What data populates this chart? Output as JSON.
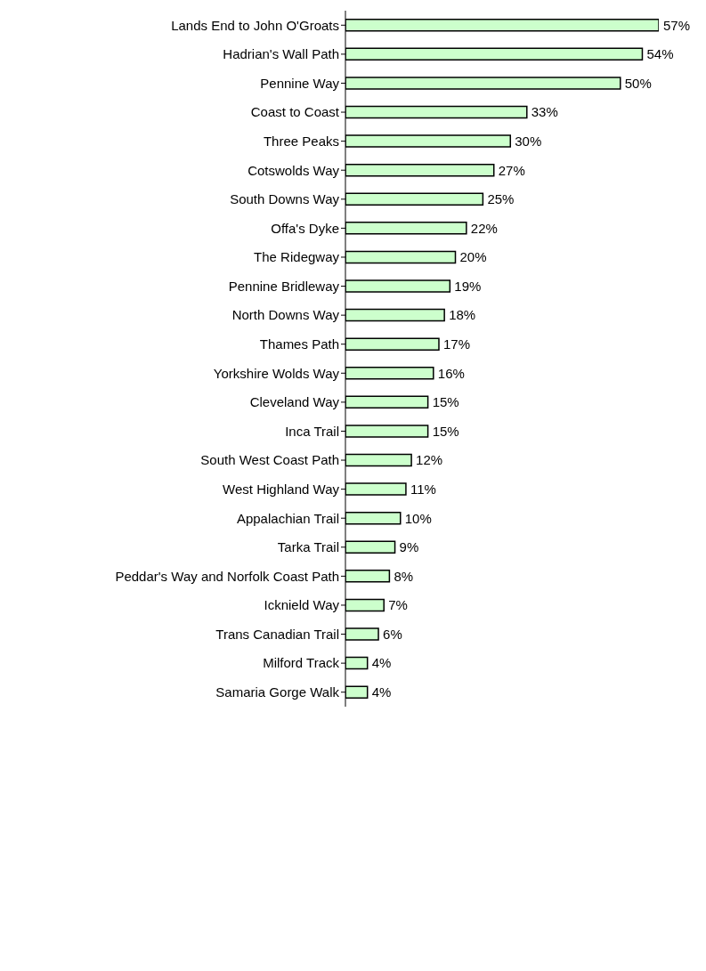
{
  "chart_data": {
    "type": "bar",
    "orientation": "horizontal",
    "categories": [
      "Lands End to John O'Groats",
      "Hadrian's Wall Path",
      "Pennine Way",
      "Coast to Coast",
      "Three Peaks",
      "Cotswolds Way",
      "South Downs Way",
      "Offa's Dyke",
      "The Ridegway",
      "Pennine Bridleway",
      "North Downs Way",
      "Thames Path",
      "Yorkshire Wolds Way",
      "Cleveland Way",
      "Inca Trail",
      "South West Coast Path",
      "West Highland Way",
      "Appalachian Trail",
      "Tarka Trail",
      "Peddar's Way and Norfolk Coast Path",
      "Icknield Way",
      "Trans Canadian Trail",
      "Milford Track",
      "Samaria Gorge Walk"
    ],
    "values": [
      57,
      54,
      50,
      33,
      30,
      27,
      25,
      22,
      20,
      19,
      18,
      17,
      16,
      15,
      15,
      12,
      11,
      10,
      9,
      8,
      7,
      6,
      4,
      4
    ],
    "value_labels": [
      "57%",
      "54%",
      "50%",
      "33%",
      "30%",
      "27%",
      "25%",
      "22%",
      "20%",
      "19%",
      "18%",
      "17%",
      "16%",
      "15%",
      "15%",
      "12%",
      "11%",
      "10%",
      "9%",
      "8%",
      "7%",
      "6%",
      "4%",
      "4%"
    ],
    "color": "#ccffcc"
  }
}
